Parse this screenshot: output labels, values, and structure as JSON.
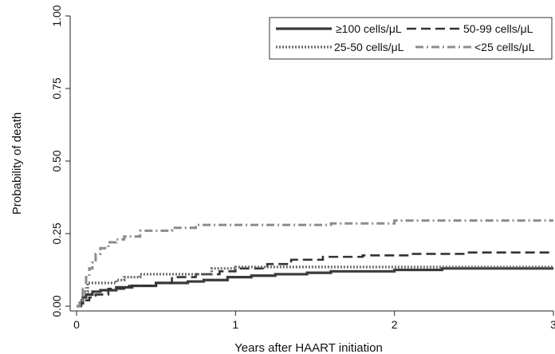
{
  "chart_data": {
    "type": "line",
    "title": "",
    "xlabel": "Years after HAART initiation",
    "ylabel": "Probability of death",
    "xlim": [
      0,
      3
    ],
    "ylim": [
      0,
      1
    ],
    "x_ticks": [
      "0",
      "1",
      "2",
      "3"
    ],
    "y_ticks": [
      "0.00",
      "0.25",
      "0.50",
      "0.75",
      "1.00"
    ],
    "grid": false,
    "legend_position": "top-right",
    "series": [
      {
        "name": "≥100 cells/μL",
        "color": "#3a3a3a",
        "dash": "solid",
        "points": [
          [
            0,
            0
          ],
          [
            0.02,
            0.01
          ],
          [
            0.04,
            0.03
          ],
          [
            0.06,
            0.04
          ],
          [
            0.1,
            0.05
          ],
          [
            0.15,
            0.055
          ],
          [
            0.25,
            0.065
          ],
          [
            0.35,
            0.07
          ],
          [
            0.5,
            0.08
          ],
          [
            0.7,
            0.085
          ],
          [
            0.8,
            0.09
          ],
          [
            0.95,
            0.1
          ],
          [
            1.1,
            0.105
          ],
          [
            1.25,
            0.11
          ],
          [
            1.45,
            0.115
          ],
          [
            1.6,
            0.12
          ],
          [
            2.0,
            0.125
          ],
          [
            2.3,
            0.13
          ],
          [
            2.5,
            0.13
          ],
          [
            3.0,
            0.13
          ]
        ]
      },
      {
        "name": "50-99 cells/μL",
        "color": "#333333",
        "dash": "dashed",
        "points": [
          [
            0,
            0
          ],
          [
            0.03,
            0.02
          ],
          [
            0.08,
            0.03
          ],
          [
            0.12,
            0.04
          ],
          [
            0.2,
            0.06
          ],
          [
            0.3,
            0.07
          ],
          [
            0.5,
            0.08
          ],
          [
            0.6,
            0.1
          ],
          [
            0.75,
            0.11
          ],
          [
            0.9,
            0.12
          ],
          [
            1.0,
            0.13
          ],
          [
            1.2,
            0.145
          ],
          [
            1.35,
            0.16
          ],
          [
            1.55,
            0.17
          ],
          [
            1.8,
            0.175
          ],
          [
            2.1,
            0.18
          ],
          [
            2.45,
            0.185
          ],
          [
            3.0,
            0.185
          ]
        ]
      },
      {
        "name": "25-50 cells/μL",
        "color": "#6a6a6a",
        "dash": "dotted",
        "points": [
          [
            0,
            0
          ],
          [
            0.02,
            0.02
          ],
          [
            0.04,
            0.05
          ],
          [
            0.07,
            0.08
          ],
          [
            0.15,
            0.08
          ],
          [
            0.25,
            0.09
          ],
          [
            0.3,
            0.1
          ],
          [
            0.4,
            0.11
          ],
          [
            0.55,
            0.11
          ],
          [
            0.85,
            0.13
          ],
          [
            1.0,
            0.135
          ],
          [
            2.0,
            0.135
          ],
          [
            3.0,
            0.135
          ]
        ]
      },
      {
        "name": "<25 cells/μL",
        "color": "#8c8c8c",
        "dash": "dashdot",
        "points": [
          [
            0,
            0
          ],
          [
            0.02,
            0.02
          ],
          [
            0.04,
            0.06
          ],
          [
            0.06,
            0.1
          ],
          [
            0.08,
            0.13
          ],
          [
            0.1,
            0.15
          ],
          [
            0.12,
            0.18
          ],
          [
            0.15,
            0.2
          ],
          [
            0.2,
            0.22
          ],
          [
            0.25,
            0.23
          ],
          [
            0.3,
            0.24
          ],
          [
            0.4,
            0.26
          ],
          [
            0.6,
            0.27
          ],
          [
            0.75,
            0.28
          ],
          [
            1.0,
            0.28
          ],
          [
            1.6,
            0.285
          ],
          [
            2.0,
            0.295
          ],
          [
            3.0,
            0.295
          ]
        ]
      }
    ]
  }
}
